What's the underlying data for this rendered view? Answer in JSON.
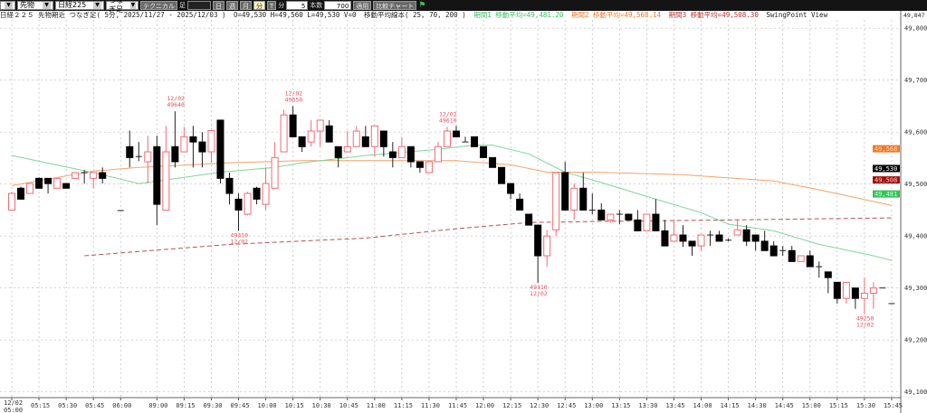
{
  "toolbar": {
    "market_select": "先物",
    "index_select": "日経225",
    "bar_type_select": "つなぎ足",
    "technical_button": "テクニカル",
    "bar_label": "足",
    "bar_input": "",
    "period_buttons": [
      "日",
      "週",
      "月",
      "分",
      "T"
    ],
    "active_period": "分",
    "minute_label": "分",
    "minute_value": "5",
    "count_label": "本数",
    "count_value": "700",
    "apply_button": "適用",
    "compare_button": "比較チャート",
    "flag_icon": "green-flag-icon"
  },
  "info": {
    "title": "日経２２５ 先物期近 つなぎ足( 5分, 2025/11/27 - 2025/12/03 )",
    "ohlcv": "O=49,530 H=49,560 L=49,530 V=0",
    "ma_header": "移動平均線本( 25, 70, 200 )",
    "ma1": "期間1 移動平均=49,481.20",
    "ma2": "期間2 移動平均=49,568.14",
    "ma3": "期間3 移動平均=49,508.30",
    "view": "SwingPoint View",
    "top_axis_value": "49,847"
  },
  "colors": {
    "bull": "#f26a73",
    "bear": "#000000",
    "ma25": "#7ed69a",
    "ma70": "#f4a36a",
    "ma200": "#b5534f",
    "grid": "#bbbbbb"
  },
  "chart_data": {
    "type": "candlestick",
    "ylim": [
      49089,
      49816
    ],
    "y_ticks": [
      "49,100",
      "49,200",
      "49,300",
      "49,400",
      "49,500",
      "49,600",
      "49,700",
      "49,800"
    ],
    "y_tick_values": [
      49100,
      49200,
      49300,
      49400,
      49500,
      49600,
      49700,
      49800
    ],
    "x_ticks": [
      "12/02 05:00",
      "05:15",
      "05:30",
      "05:45",
      "06:00",
      "09:00",
      "09:15",
      "09:30",
      "09:45",
      "10:00",
      "10:15",
      "10:30",
      "10:45",
      "11:00",
      "11:15",
      "11:30",
      "11:45",
      "12:00",
      "12:15",
      "12:30",
      "12:45",
      "13:00",
      "13:15",
      "13:30",
      "13:45",
      "14:00",
      "14:15",
      "14:30",
      "14:45",
      "15:00",
      "15:15",
      "15:30",
      "15:45"
    ],
    "candles_ohlc": [
      [
        "05:00",
        49450,
        49485,
        49450,
        49482
      ],
      [
        "05:05",
        49492,
        49495,
        49470,
        49471
      ],
      [
        "05:10",
        49482,
        49501,
        49482,
        49501
      ],
      [
        "05:15",
        49511,
        49513,
        49492,
        49492
      ],
      [
        "05:20",
        49511,
        49511,
        49482,
        49501
      ],
      [
        "05:25",
        49492,
        49511,
        49492,
        49511
      ],
      [
        "05:30",
        49501,
        49501,
        49492,
        49492
      ],
      [
        "05:35",
        49511,
        49522,
        49511,
        49522
      ],
      [
        "05:40",
        49522,
        49527,
        49501,
        49522
      ],
      [
        "05:45",
        49511,
        49522,
        49492,
        49522
      ],
      [
        "05:50",
        49522,
        49532,
        49501,
        49511
      ],
      null,
      [
        "06:00",
        49449,
        49449,
        49449,
        49449
      ],
      [
        "08:45",
        49572,
        49603,
        49532,
        49551
      ],
      [
        "08:50",
        49553,
        49581,
        49544,
        49553
      ],
      [
        "08:55",
        49543,
        49593,
        49501,
        49562
      ],
      [
        "09:00",
        49572,
        49593,
        49421,
        49461
      ],
      [
        "09:05",
        49450,
        49612,
        49450,
        49562
      ],
      [
        "09:10",
        49572,
        49640,
        49532,
        49543
      ],
      [
        "09:15",
        49562,
        49610,
        49562,
        49591
      ],
      [
        "09:20",
        49591,
        49612,
        49532,
        49581
      ],
      [
        "09:25",
        49581,
        49600,
        49532,
        49562
      ],
      [
        "09:30",
        49562,
        49603,
        49541,
        49603
      ],
      [
        "09:35",
        49623,
        49624,
        49501,
        49511
      ],
      [
        "09:40",
        49511,
        49522,
        49461,
        49482
      ],
      [
        "09:45",
        49471,
        49482,
        49410,
        49450
      ],
      [
        "09:50",
        49442,
        49485,
        49440,
        49482
      ],
      [
        "09:55",
        49492,
        49495,
        49461,
        49471
      ],
      [
        "10:00",
        49461,
        49532,
        49450,
        49501
      ],
      [
        "10:05",
        49492,
        49581,
        49492,
        49551
      ],
      [
        "10:10",
        49562,
        49643,
        49562,
        49633
      ],
      [
        "10:15",
        49633,
        49650,
        49591,
        49591
      ],
      [
        "10:20",
        49591,
        49591,
        49562,
        49572
      ],
      [
        "10:25",
        49581,
        49623,
        49572,
        49602
      ],
      [
        "10:30",
        49602,
        49623,
        49572,
        49623
      ],
      [
        "10:35",
        49612,
        49623,
        49581,
        49581
      ],
      [
        "10:40",
        49572,
        49572,
        49532,
        49551
      ],
      [
        "10:45",
        49562,
        49602,
        49562,
        49572
      ],
      [
        "10:50",
        49572,
        49612,
        49572,
        49602
      ],
      [
        "10:55",
        49591,
        49612,
        49572,
        49572
      ],
      [
        "11:00",
        49572,
        49612,
        49553,
        49612
      ],
      [
        "11:05",
        49602,
        49602,
        49553,
        49572
      ],
      [
        "11:10",
        49562,
        49581,
        49532,
        49551
      ],
      [
        "11:15",
        49551,
        49591,
        49551,
        49572
      ],
      [
        "11:20",
        49572,
        49572,
        49532,
        49543
      ],
      [
        "11:25",
        49543,
        49543,
        49522,
        49532
      ],
      [
        "11:30",
        49522,
        49543,
        49522,
        49543
      ],
      [
        "11:35",
        49543,
        49581,
        49543,
        49572
      ],
      [
        "11:40",
        49572,
        49610,
        49572,
        49602
      ],
      [
        "11:45",
        49602,
        49612,
        49591,
        49591
      ],
      [
        "11:50",
        49581,
        49591,
        49581,
        49581
      ],
      [
        "11:55",
        49591,
        49591,
        49572,
        49572
      ],
      [
        "12:00",
        49572,
        49572,
        49551,
        49551
      ],
      [
        "12:05",
        49551,
        49551,
        49532,
        49532
      ],
      [
        "12:10",
        49532,
        49532,
        49501,
        49501
      ],
      [
        "12:15",
        49501,
        49501,
        49471,
        49482
      ],
      [
        "12:20",
        49471,
        49482,
        49450,
        49450
      ],
      [
        "12:25",
        49442,
        49442,
        49421,
        49421
      ],
      [
        "12:30",
        49421,
        49421,
        49310,
        49362
      ],
      [
        "12:35",
        49362,
        49412,
        49341,
        49400
      ],
      [
        "12:40",
        49412,
        49522,
        49400,
        49522
      ],
      [
        "12:45",
        49522,
        49543,
        49450,
        49450
      ],
      [
        "12:50",
        49450,
        49501,
        49431,
        49492
      ],
      [
        "12:55",
        49492,
        49522,
        49450,
        49450
      ],
      [
        "13:00",
        49450,
        49482,
        49442,
        49450
      ],
      [
        "13:05",
        49450,
        49463,
        49431,
        49431
      ],
      [
        "13:10",
        49431,
        49442,
        49425,
        49442
      ],
      [
        "13:15",
        49442,
        49450,
        49423,
        49442
      ],
      [
        "13:20",
        49442,
        49442,
        49431,
        49431
      ],
      [
        "13:25",
        49431,
        49450,
        49410,
        49410
      ],
      [
        "13:30",
        49410,
        49442,
        49410,
        49442
      ],
      [
        "13:35",
        49442,
        49471,
        49410,
        49410
      ],
      [
        "13:40",
        49410,
        49431,
        49381,
        49381
      ],
      [
        "13:45",
        49390,
        49431,
        49390,
        49402
      ],
      [
        "13:50",
        49402,
        49421,
        49379,
        49390
      ],
      [
        "13:55",
        49390,
        49390,
        49362,
        49381
      ],
      [
        "14:00",
        49381,
        49402,
        49372,
        49402
      ],
      [
        "14:05",
        49402,
        49410,
        49381,
        49402
      ],
      [
        "14:10",
        49402,
        49410,
        49390,
        49390
      ],
      [
        "14:15",
        49392,
        49395,
        49390,
        49392
      ],
      [
        "14:20",
        49402,
        49431,
        49402,
        49412
      ],
      [
        "14:25",
        49412,
        49421,
        49381,
        49390
      ],
      [
        "14:30",
        49402,
        49402,
        49372,
        49390
      ],
      [
        "14:35",
        49390,
        49410,
        49372,
        49372
      ],
      [
        "14:40",
        49381,
        49390,
        49362,
        49362
      ],
      [
        "14:45",
        49372,
        49381,
        49362,
        49372
      ],
      [
        "14:50",
        49372,
        49381,
        49351,
        49351
      ],
      [
        "14:55",
        49351,
        49362,
        49351,
        49362
      ],
      [
        "15:00",
        49362,
        49372,
        49341,
        49341
      ],
      [
        "15:05",
        49341,
        49351,
        49320,
        49341
      ],
      [
        "15:10",
        49331,
        49331,
        49290,
        49320
      ],
      [
        "15:15",
        49311,
        49311,
        49270,
        49280
      ],
      [
        "15:20",
        49280,
        49311,
        49270,
        49311
      ],
      [
        "15:25",
        49300,
        49300,
        49260,
        49280
      ],
      [
        "15:30",
        49280,
        49320,
        49250,
        49290
      ],
      [
        "15:35",
        49290,
        49311,
        49260,
        49300
      ],
      [
        "15:40",
        49300,
        49300,
        49300,
        49300
      ],
      [
        "15:45",
        49270,
        49270,
        49270,
        49270
      ]
    ],
    "ma_25": [
      [
        "05:00",
        49555
      ],
      [
        "05:45",
        49522
      ],
      [
        "08:50",
        49501
      ],
      [
        "09:15",
        49513
      ],
      [
        "09:35",
        49523
      ],
      [
        "10:05",
        49532
      ],
      [
        "10:20",
        49541
      ],
      [
        "10:55",
        49555
      ],
      [
        "11:35",
        49567
      ],
      [
        "11:55",
        49575
      ],
      [
        "12:05",
        49575
      ],
      [
        "12:25",
        49558
      ],
      [
        "12:45",
        49523
      ],
      [
        "13:05",
        49503
      ],
      [
        "13:35",
        49471
      ],
      [
        "14:00",
        49445
      ],
      [
        "14:15",
        49423
      ],
      [
        "14:40",
        49410
      ],
      [
        "15:05",
        49384
      ],
      [
        "15:35",
        49362
      ],
      [
        "15:45",
        49353
      ]
    ],
    "ma_70": [
      [
        "05:00",
        49497
      ],
      [
        "05:45",
        49525
      ],
      [
        "08:50",
        49532
      ],
      [
        "09:40",
        49541
      ],
      [
        "10:20",
        49545
      ],
      [
        "11:45",
        49545
      ],
      [
        "12:15",
        49537
      ],
      [
        "12:35",
        49523
      ],
      [
        "13:00",
        49523
      ],
      [
        "13:50",
        49518
      ],
      [
        "14:40",
        49506
      ],
      [
        "15:05",
        49489
      ],
      [
        "15:45",
        49459
      ]
    ],
    "ma_200": [
      [
        "05:40",
        49362
      ],
      [
        "09:40",
        49384
      ],
      [
        "10:55",
        49396
      ],
      [
        "11:45",
        49414
      ],
      [
        "12:25",
        49426
      ],
      [
        "13:00",
        49428
      ],
      [
        "14:15",
        49431
      ],
      [
        "15:45",
        49435
      ]
    ],
    "swing_points": [
      {
        "time": "09:10",
        "date": "12/02",
        "value": "49640",
        "pos": "high"
      },
      {
        "time": "09:45",
        "date": "12/02",
        "value": "49410",
        "pos": "low"
      },
      {
        "time": "10:15",
        "date": "12/02",
        "value": "49650",
        "pos": "high"
      },
      {
        "time": "11:40",
        "date": "12/02",
        "value": "49610",
        "pos": "high"
      },
      {
        "time": "12:30",
        "date": "12/02",
        "value": "49310",
        "pos": "low"
      },
      {
        "time": "15:30",
        "date": "12/02",
        "value": "49250",
        "pos": "low"
      }
    ],
    "price_badges": [
      {
        "label": "49,568",
        "value": 49568,
        "bg": "#f07a2a",
        "fg": "#ffd7b8"
      },
      {
        "label": "49,530",
        "value": 49530,
        "bg": "#000000",
        "fg": "#ffffff"
      },
      {
        "label": "49,508",
        "value": 49508,
        "bg": "#a01010",
        "fg": "#ffc8c8"
      },
      {
        "label": "49,481",
        "value": 49481,
        "bg": "#36c25a",
        "fg": "#c8ffd8"
      }
    ]
  }
}
